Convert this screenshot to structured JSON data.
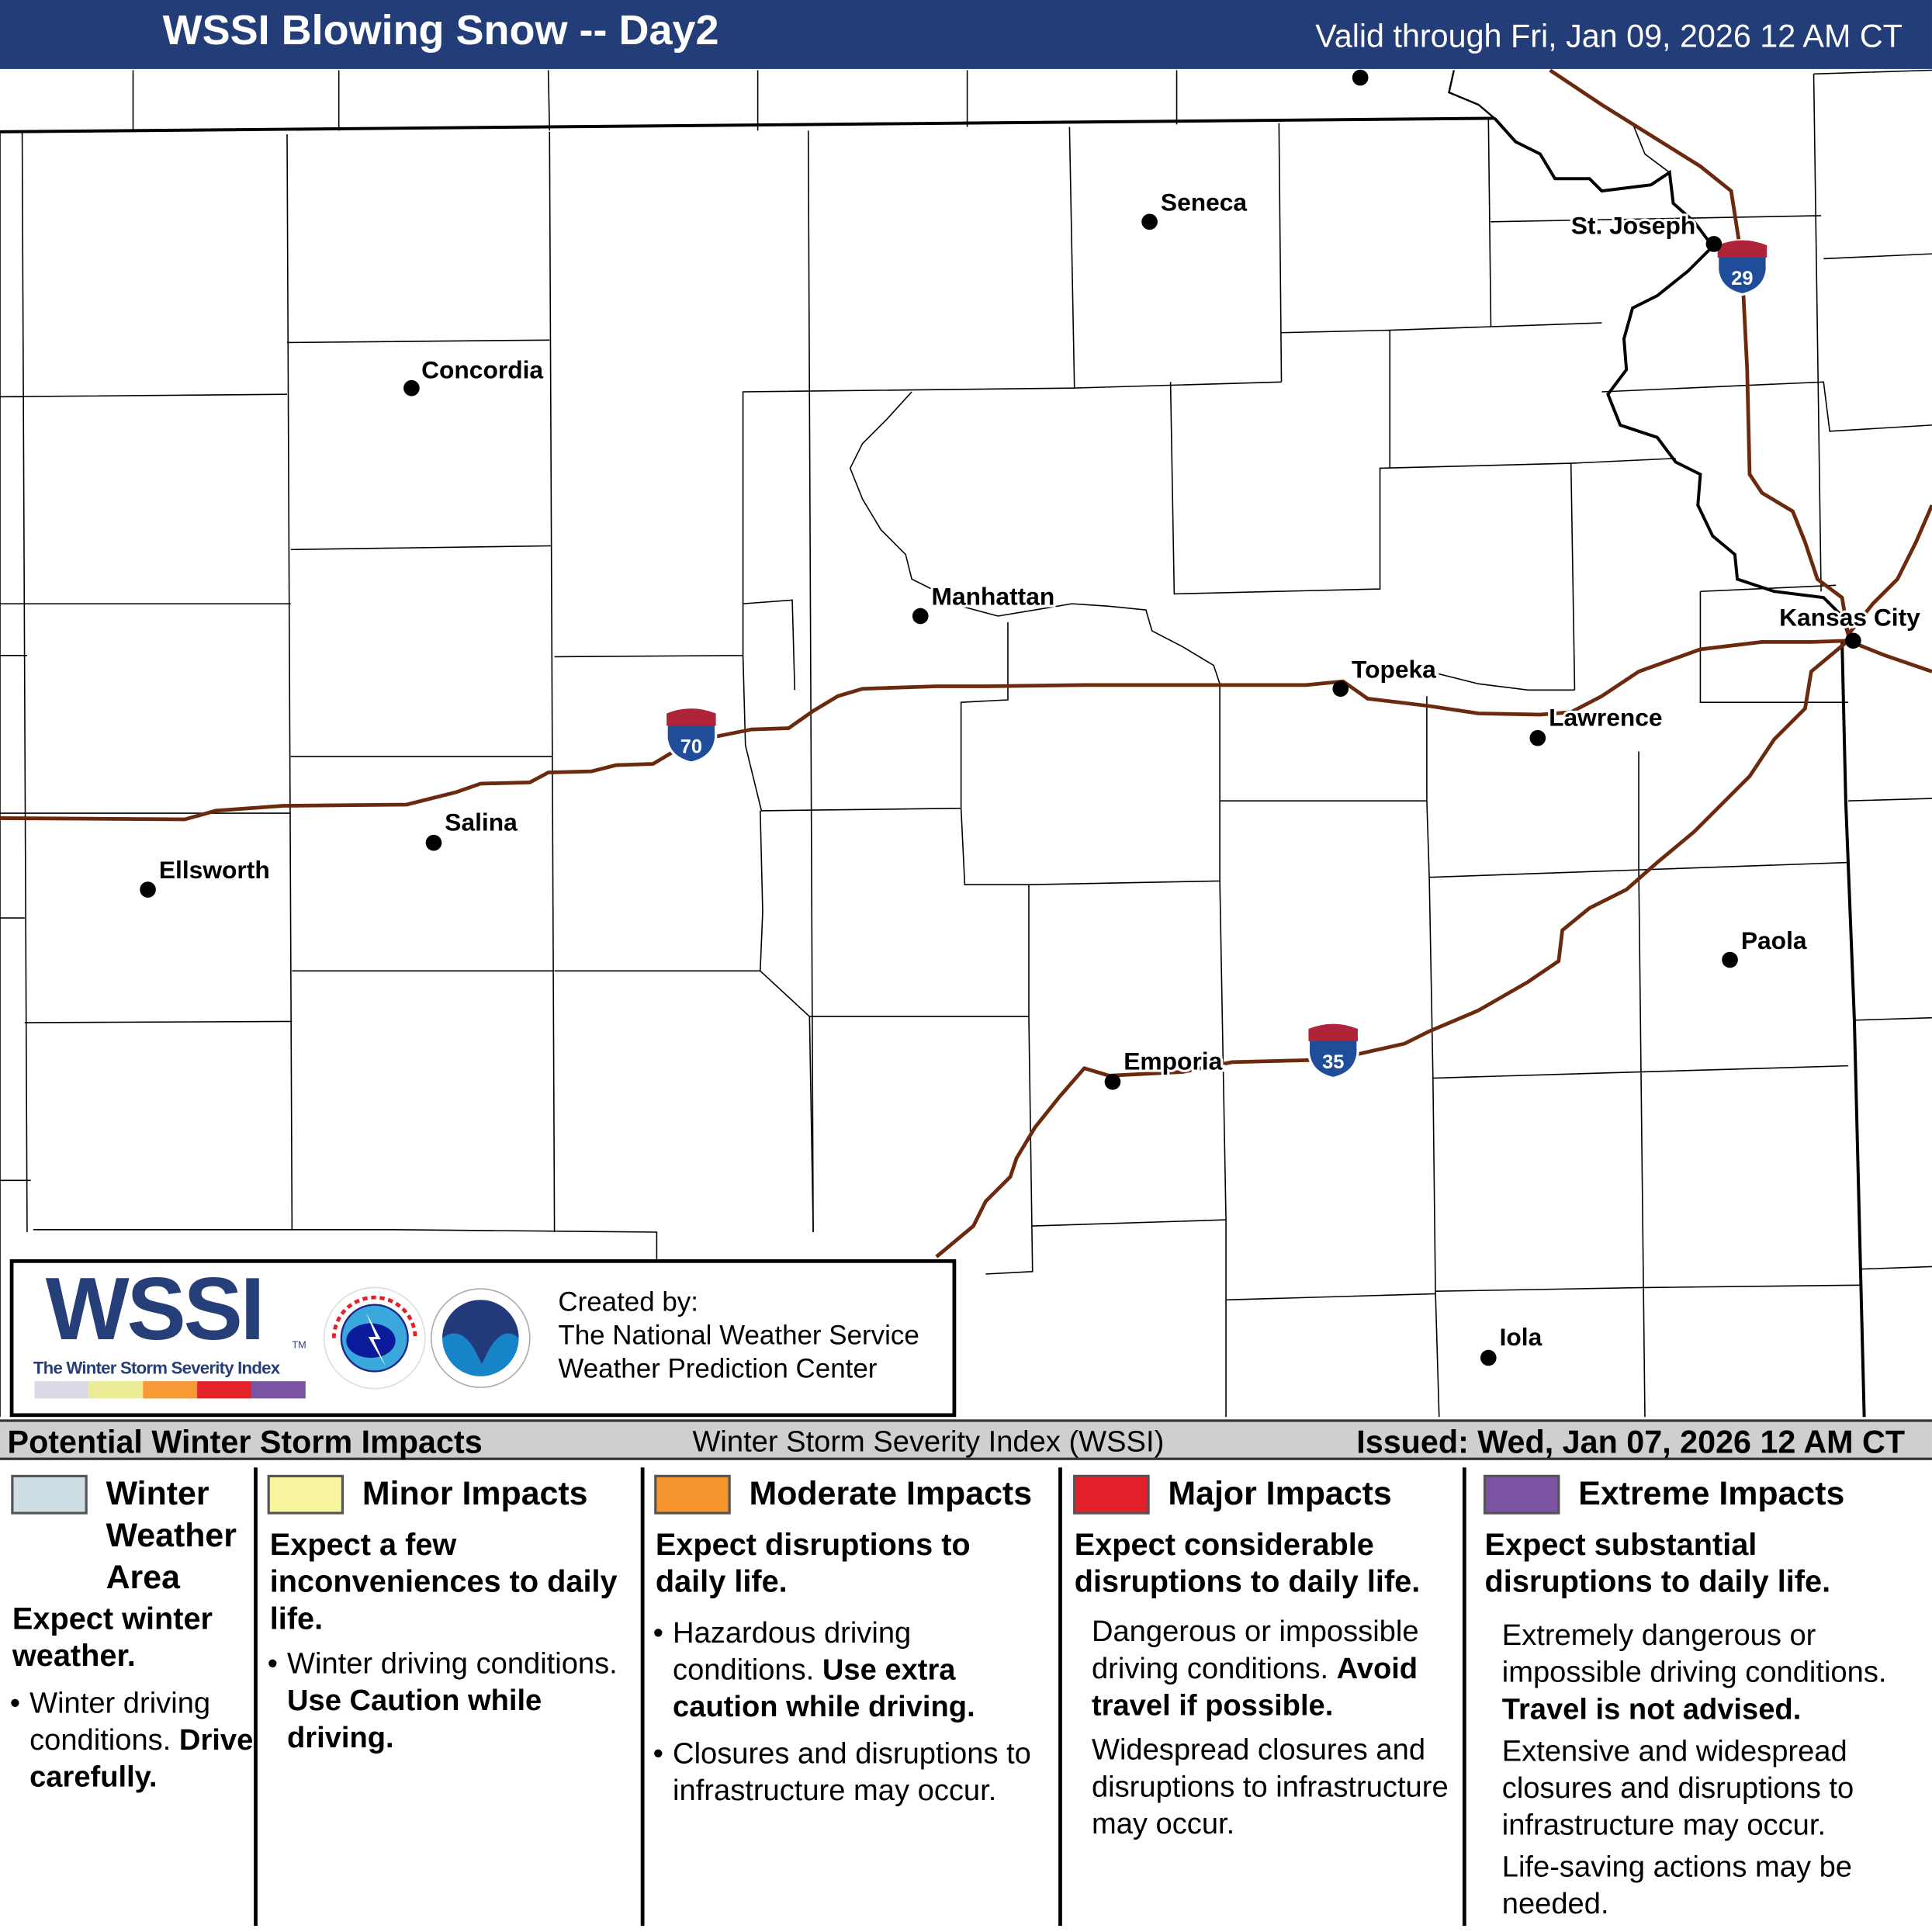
{
  "header": {
    "title": "WSSI Blowing Snow -- Day2",
    "valid": "Valid through Fri, Jan 09, 2026 12 AM CT"
  },
  "map": {
    "cities": [
      {
        "name": "Seneca"
      },
      {
        "name": "St. Joseph"
      },
      {
        "name": "Concordia"
      },
      {
        "name": "Manhattan"
      },
      {
        "name": "Kansas City"
      },
      {
        "name": "Topeka"
      },
      {
        "name": "Lawrence"
      },
      {
        "name": "Salina"
      },
      {
        "name": "Ellsworth"
      },
      {
        "name": "Paola"
      },
      {
        "name": "Emporia"
      },
      {
        "name": "Iola"
      }
    ],
    "interstates": [
      "70",
      "35",
      "29"
    ],
    "colors": {
      "interstate": "#6b2a0e",
      "shield_blue": "#1f4d9a",
      "shield_red": "#b0243a"
    }
  },
  "logo": {
    "wssi": "WSSI",
    "tm": "TM",
    "tagline": "The Winter Storm Severity Index",
    "swatches": [
      "#d9d9e8",
      "#ecec96",
      "#f79a35",
      "#e32229",
      "#7b53a3"
    ],
    "created_by": "Created by:",
    "org1": "The National Weather Service",
    "org2": "Weather Prediction Center"
  },
  "legend_bar": {
    "left": "Potential Winter Storm Impacts",
    "center": "Winter Storm Severity Index (WSSI)",
    "right": "Issued: Wed, Jan 07, 2026 12 AM CT"
  },
  "legend": [
    {
      "title_l1": "Winter",
      "title_l2": "Weather",
      "title_l3": "Area",
      "color": "#cfdde5",
      "sub": "Expect winter weather.",
      "b1": "Winter driving conditions.",
      "b1_bold": "Drive carefully."
    },
    {
      "title": "Minor Impacts",
      "color": "#f7f5a0",
      "sub": "Expect a few inconveniences to daily life.",
      "b1": "Winter driving conditions.",
      "b1_bold": "Use Caution while driving."
    },
    {
      "title": "Moderate Impacts",
      "color": "#f7962f",
      "sub": "Expect disruptions to daily life.",
      "b1": "Hazardous driving conditions.",
      "b1_bold": "Use extra caution while driving.",
      "b2": "Closures and disruptions to infrastructure may occur."
    },
    {
      "title": "Major Impacts",
      "color": "#e3202a",
      "sub": "Expect considerable disruptions to daily life.",
      "b1": "Dangerous or impossible driving conditions.",
      "b1_bold": "Avoid travel if possible.",
      "b2": "Widespread closures and disruptions to infrastructure may occur."
    },
    {
      "title": "Extreme Impacts",
      "color": "#7c52a3",
      "sub": "Expect substantial disruptions to daily life.",
      "b1": "Extremely dangerous or impossible driving conditions.",
      "b1_bold": "Travel is not advised.",
      "b2": "Extensive and widespread closures and disruptions to infrastructure may occur.",
      "b3": "Life-saving actions may be needed."
    }
  ]
}
